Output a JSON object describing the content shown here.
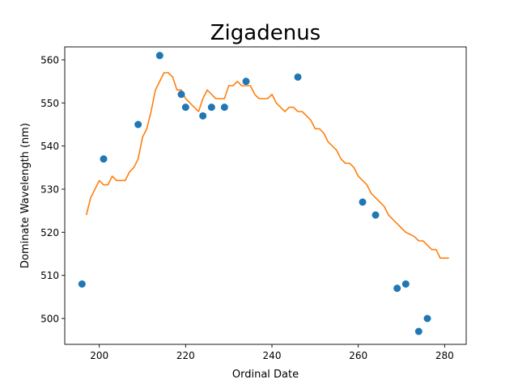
{
  "chart_data": {
    "type": "scatter",
    "title": "Zigadenus",
    "xlabel": "Ordinal Date",
    "ylabel": "Dominate Wavelength (nm)",
    "xlim": [
      192,
      285
    ],
    "ylim": [
      494,
      563
    ],
    "xticks": [
      200,
      220,
      240,
      260,
      280
    ],
    "yticks": [
      500,
      510,
      520,
      530,
      540,
      550,
      560
    ],
    "grid": false,
    "colors": {
      "points": "#1f77b4",
      "line": "#ff7f0e"
    },
    "series": [
      {
        "type": "scatter",
        "x": [
          196,
          201,
          209,
          214,
          219,
          220,
          224,
          226,
          229,
          234,
          246,
          261,
          264,
          269,
          271,
          274,
          276
        ],
        "y": [
          508,
          537,
          545,
          561,
          552,
          549,
          547,
          549,
          549,
          555,
          556,
          527,
          524,
          507,
          508,
          497,
          500
        ]
      },
      {
        "type": "line",
        "x": [
          197,
          198,
          199,
          200,
          201,
          202,
          203,
          204,
          205,
          206,
          207,
          208,
          209,
          210,
          211,
          212,
          213,
          214,
          215,
          216,
          217,
          218,
          219,
          220,
          221,
          222,
          223,
          224,
          225,
          226,
          227,
          228,
          229,
          230,
          231,
          232,
          233,
          234,
          235,
          236,
          237,
          238,
          239,
          240,
          241,
          242,
          243,
          244,
          245,
          246,
          247,
          248,
          249,
          250,
          251,
          252,
          253,
          254,
          255,
          256,
          257,
          258,
          259,
          260,
          261,
          262,
          263,
          264,
          265,
          266,
          267,
          268,
          269,
          270,
          271,
          272,
          273,
          274,
          275,
          276,
          277,
          278,
          279,
          280,
          281
        ],
        "y": [
          524,
          528,
          530,
          532,
          531,
          531,
          533,
          532,
          532,
          532,
          534,
          535,
          537,
          542,
          544,
          548,
          553,
          555,
          557,
          557,
          556,
          553,
          553,
          551,
          550,
          549,
          548,
          551,
          553,
          552,
          551,
          551,
          551,
          554,
          554,
          555,
          554,
          554,
          554,
          552,
          551,
          551,
          551,
          552,
          550,
          549,
          548,
          549,
          549,
          548,
          548,
          547,
          546,
          544,
          544,
          543,
          541,
          540,
          539,
          537,
          536,
          536,
          535,
          533,
          532,
          531,
          529,
          528,
          527,
          526,
          524,
          523,
          522,
          521,
          520,
          519.5,
          519,
          518,
          518,
          517,
          516,
          516,
          514,
          514,
          514
        ]
      }
    ]
  }
}
